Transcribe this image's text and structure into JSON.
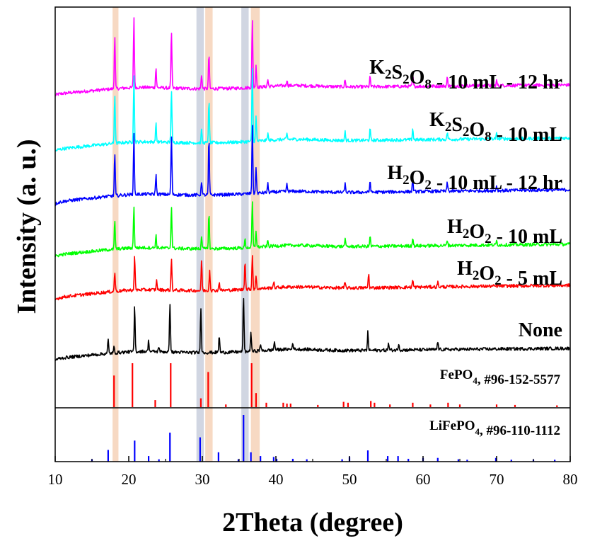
{
  "chart_data": {
    "type": "line",
    "xlabel": "2Theta (degree)",
    "ylabel": "Intensity (a. u.)",
    "xlim": [
      10,
      80
    ],
    "x_ticks": [
      10,
      20,
      30,
      40,
      50,
      60,
      70,
      80
    ],
    "highlight_bands": [
      {
        "range": [
          17.8,
          18.6
        ],
        "color": "#f6d2b8"
      },
      {
        "range": [
          29.2,
          30.2
        ],
        "color": "#c9cfdd"
      },
      {
        "range": [
          30.4,
          31.4
        ],
        "color": "#f6d2b8"
      },
      {
        "range": [
          35.3,
          36.3
        ],
        "color": "#c9cfdd"
      },
      {
        "range": [
          36.6,
          37.8
        ],
        "color": "#f6d2b8"
      }
    ],
    "series": [
      {
        "label_parts": [
          [
            "K",
            "n"
          ],
          [
            "2",
            "s"
          ],
          [
            "S",
            "n"
          ],
          [
            "2",
            "s"
          ],
          [
            "O",
            "n"
          ],
          [
            "8",
            "s"
          ],
          [
            " - 10 mL - 12 hr",
            "n"
          ]
        ],
        "color": "#ff00ff",
        "peaks": [
          [
            18.1,
            75
          ],
          [
            20.7,
            100
          ],
          [
            23.7,
            28
          ],
          [
            25.8,
            80
          ],
          [
            29.9,
            20
          ],
          [
            30.9,
            50
          ],
          [
            36.8,
            95
          ],
          [
            37.3,
            32
          ],
          [
            38.9,
            10
          ],
          [
            41.5,
            8
          ],
          [
            49.4,
            10
          ],
          [
            52.8,
            14
          ],
          [
            58.6,
            15
          ],
          [
            63.3,
            12
          ],
          [
            70.0,
            7
          ]
        ]
      },
      {
        "label_parts": [
          [
            "K",
            "n"
          ],
          [
            "2",
            "s"
          ],
          [
            "S",
            "n"
          ],
          [
            "2",
            "s"
          ],
          [
            "O",
            "n"
          ],
          [
            "8",
            "s"
          ],
          [
            " - 10 mL",
            "n"
          ]
        ],
        "color": "#00ffff",
        "peaks": [
          [
            18.1,
            70
          ],
          [
            20.7,
            95
          ],
          [
            23.7,
            26
          ],
          [
            25.8,
            75
          ],
          [
            29.9,
            18
          ],
          [
            30.9,
            60
          ],
          [
            36.8,
            105
          ],
          [
            37.3,
            35
          ],
          [
            38.9,
            10
          ],
          [
            41.5,
            8
          ],
          [
            49.4,
            12
          ],
          [
            52.8,
            16
          ],
          [
            58.6,
            16
          ],
          [
            63.3,
            10
          ],
          [
            70.0,
            7
          ]
        ]
      },
      {
        "label_parts": [
          [
            "H",
            "n"
          ],
          [
            "2",
            "s"
          ],
          [
            "O",
            "n"
          ],
          [
            "2",
            "s"
          ],
          [
            " - 10 mL - 12 hr",
            "n"
          ]
        ],
        "color": "#0000ff",
        "peaks": [
          [
            18.1,
            60
          ],
          [
            20.7,
            85
          ],
          [
            23.7,
            28
          ],
          [
            25.8,
            85
          ],
          [
            29.9,
            20
          ],
          [
            30.9,
            80
          ],
          [
            36.8,
            95
          ],
          [
            37.3,
            38
          ],
          [
            38.9,
            12
          ],
          [
            41.5,
            10
          ],
          [
            49.4,
            12
          ],
          [
            52.8,
            16
          ],
          [
            58.6,
            18
          ],
          [
            63.3,
            12
          ],
          [
            70.0,
            7
          ]
        ]
      },
      {
        "label_parts": [
          [
            "H",
            "n"
          ],
          [
            "2",
            "s"
          ],
          [
            "O",
            "n"
          ],
          [
            "2",
            "s"
          ],
          [
            " - 10 mL",
            "n"
          ]
        ],
        "color": "#00ff00",
        "peaks": [
          [
            18.1,
            40
          ],
          [
            20.7,
            60
          ],
          [
            23.7,
            18
          ],
          [
            25.8,
            60
          ],
          [
            29.9,
            18
          ],
          [
            30.9,
            50
          ],
          [
            35.8,
            12
          ],
          [
            36.8,
            65
          ],
          [
            37.3,
            24
          ],
          [
            38.9,
            8
          ],
          [
            49.4,
            10
          ],
          [
            52.8,
            14
          ],
          [
            58.6,
            12
          ],
          [
            63.3,
            8
          ],
          [
            70.0,
            6
          ]
        ]
      },
      {
        "label_parts": [
          [
            "H",
            "n"
          ],
          [
            "2",
            "s"
          ],
          [
            "O",
            "n"
          ],
          [
            "2",
            "s"
          ],
          [
            " - 5 mL",
            "n"
          ]
        ],
        "color": "#ff0000",
        "peaks": [
          [
            18.1,
            28
          ],
          [
            20.8,
            48
          ],
          [
            23.8,
            14
          ],
          [
            25.8,
            45
          ],
          [
            29.9,
            42
          ],
          [
            31.0,
            30
          ],
          [
            32.3,
            12
          ],
          [
            35.8,
            42
          ],
          [
            36.8,
            48
          ],
          [
            37.3,
            18
          ],
          [
            39.7,
            8
          ],
          [
            49.4,
            8
          ],
          [
            52.6,
            20
          ],
          [
            58.6,
            10
          ],
          [
            62.0,
            7
          ]
        ]
      },
      {
        "label_parts": [
          [
            "None",
            "n"
          ]
        ],
        "color": "#000000",
        "peaks": [
          [
            17.2,
            20
          ],
          [
            18.0,
            8
          ],
          [
            20.8,
            65
          ],
          [
            22.7,
            16
          ],
          [
            24.1,
            8
          ],
          [
            25.6,
            70
          ],
          [
            29.8,
            65
          ],
          [
            32.3,
            24
          ],
          [
            35.6,
            80
          ],
          [
            36.6,
            28
          ],
          [
            37.9,
            10
          ],
          [
            39.8,
            12
          ],
          [
            42.3,
            10
          ],
          [
            52.5,
            26
          ],
          [
            55.3,
            10
          ],
          [
            56.7,
            10
          ],
          [
            62.0,
            12
          ]
        ]
      }
    ],
    "references": [
      {
        "label_parts": [
          [
            "FePO",
            "n"
          ],
          [
            "4",
            "s"
          ],
          [
            ", #96-152-5577",
            "n"
          ]
        ],
        "color": "#ff0000",
        "sticks": [
          [
            18.0,
            0.72
          ],
          [
            20.5,
            1.0
          ],
          [
            23.6,
            0.16
          ],
          [
            25.7,
            1.0
          ],
          [
            29.8,
            0.2
          ],
          [
            30.8,
            0.8
          ],
          [
            33.2,
            0.06
          ],
          [
            36.7,
            1.0
          ],
          [
            37.3,
            0.32
          ],
          [
            38.7,
            0.1
          ],
          [
            41.0,
            0.1
          ],
          [
            41.5,
            0.08
          ],
          [
            42.0,
            0.08
          ],
          [
            45.7,
            0.05
          ],
          [
            49.2,
            0.12
          ],
          [
            49.8,
            0.1
          ],
          [
            52.9,
            0.14
          ],
          [
            53.4,
            0.1
          ],
          [
            55.5,
            0.06
          ],
          [
            58.6,
            0.1
          ],
          [
            61.0,
            0.06
          ],
          [
            63.4,
            0.1
          ],
          [
            65.0,
            0.06
          ],
          [
            70.0,
            0.06
          ],
          [
            72.5,
            0.05
          ],
          [
            78.2,
            0.04
          ]
        ]
      },
      {
        "label_parts": [
          [
            "LiFePO",
            "n"
          ],
          [
            "4",
            "s"
          ],
          [
            ", #96-110-1112",
            "n"
          ]
        ],
        "color": "#0000ff",
        "sticks": [
          [
            15.0,
            0.05
          ],
          [
            17.2,
            0.25
          ],
          [
            20.8,
            0.45
          ],
          [
            22.7,
            0.12
          ],
          [
            24.1,
            0.05
          ],
          [
            25.6,
            0.62
          ],
          [
            29.7,
            0.52
          ],
          [
            32.2,
            0.2
          ],
          [
            34.9,
            0.05
          ],
          [
            35.6,
            1.0
          ],
          [
            36.6,
            0.2
          ],
          [
            37.9,
            0.12
          ],
          [
            39.7,
            0.1
          ],
          [
            40.1,
            0.06
          ],
          [
            42.3,
            0.06
          ],
          [
            44.2,
            0.05
          ],
          [
            49.0,
            0.05
          ],
          [
            50.0,
            0.1
          ],
          [
            52.5,
            0.24
          ],
          [
            55.2,
            0.12
          ],
          [
            56.6,
            0.12
          ],
          [
            58.0,
            0.06
          ],
          [
            60.0,
            0.08
          ],
          [
            62.0,
            0.08
          ],
          [
            64.8,
            0.05
          ],
          [
            66.0,
            0.04
          ],
          [
            69.9,
            0.08
          ],
          [
            72.0,
            0.04
          ],
          [
            75.0,
            0.04
          ],
          [
            77.9,
            0.04
          ]
        ]
      }
    ],
    "grid": false,
    "legend": "inline labels at right"
  }
}
